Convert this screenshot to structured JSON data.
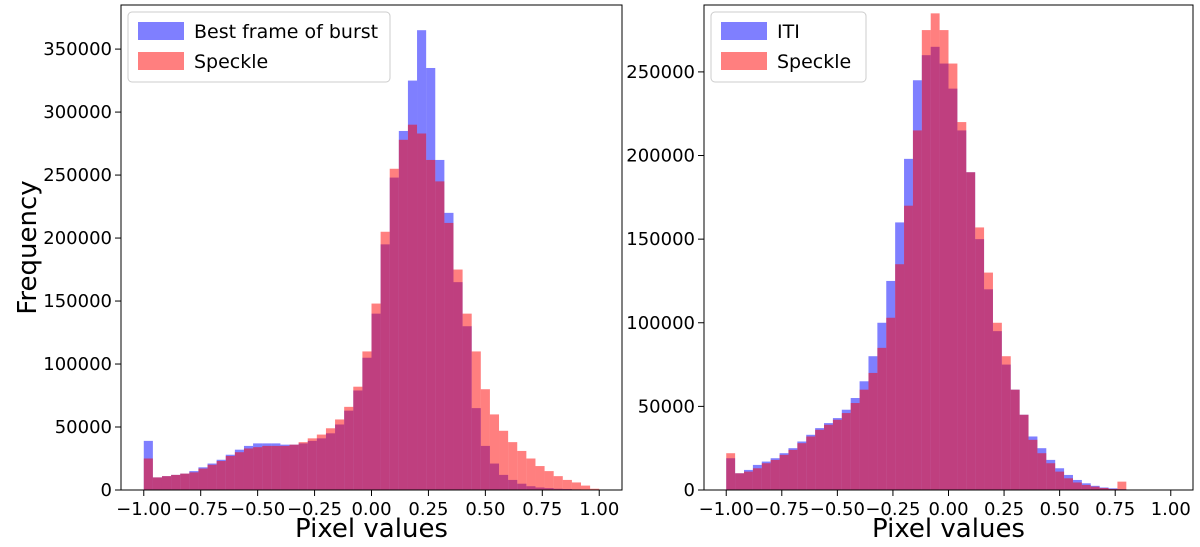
{
  "colors": {
    "blue": "#0000ff",
    "red": "#ff0000",
    "bar_alpha": 0.5
  },
  "chart_data": [
    {
      "type": "bar",
      "subtype": "overlaid-histogram",
      "xlabel": "Pixel values",
      "ylabel": "Frequency",
      "xlim": [
        -1.1,
        1.1
      ],
      "ylim": [
        0,
        385000
      ],
      "xticks": [
        -1.0,
        -0.75,
        -0.5,
        -0.25,
        0.0,
        0.25,
        0.5,
        0.75,
        1.0
      ],
      "xtick_labels": [
        "−1.00",
        "−0.75",
        "−0.50",
        "−0.25",
        "0.00",
        "0.25",
        "0.50",
        "0.75",
        "1.00"
      ],
      "yticks": [
        0,
        50000,
        100000,
        150000,
        200000,
        250000,
        300000,
        350000
      ],
      "ytick_labels": [
        "0",
        "50000",
        "100000",
        "150000",
        "200000",
        "250000",
        "300000",
        "350000"
      ],
      "legend_position": "top-left",
      "bin_start": -1.0,
      "bin_width": 0.04,
      "series": [
        {
          "name": "Best frame of burst",
          "color": "blue",
          "values": [
            39000,
            10000,
            11000,
            12000,
            13000,
            15000,
            18000,
            21000,
            24000,
            28000,
            32000,
            35000,
            37000,
            37000,
            37000,
            36000,
            36000,
            37000,
            39000,
            41000,
            45000,
            52000,
            63000,
            79000,
            105000,
            140000,
            195000,
            248000,
            285000,
            325000,
            365000,
            335000,
            262000,
            220000,
            165000,
            130000,
            65000,
            35000,
            21000,
            12000,
            8000,
            5000,
            3000,
            2000,
            1500,
            1000,
            800,
            500,
            0,
            0
          ]
        },
        {
          "name": "Speckle",
          "color": "red",
          "values": [
            25000,
            10000,
            11000,
            12000,
            13000,
            14000,
            17000,
            20000,
            23000,
            27000,
            30000,
            33000,
            34000,
            35000,
            35000,
            35000,
            36000,
            38000,
            41000,
            44000,
            49000,
            56000,
            66000,
            82000,
            110000,
            148000,
            205000,
            255000,
            278000,
            290000,
            283000,
            262000,
            245000,
            212000,
            175000,
            140000,
            110000,
            80000,
            60000,
            47000,
            38000,
            31000,
            25000,
            19000,
            15000,
            11000,
            8000,
            6000,
            3500,
            1000
          ]
        }
      ]
    },
    {
      "type": "bar",
      "subtype": "overlaid-histogram",
      "xlabel": "Pixel values",
      "ylabel": "",
      "xlim": [
        -1.1,
        1.1
      ],
      "ylim": [
        0,
        290000
      ],
      "xticks": [
        -1.0,
        -0.75,
        -0.5,
        -0.25,
        0.0,
        0.25,
        0.5,
        0.75,
        1.0
      ],
      "xtick_labels": [
        "−1.00",
        "−0.75",
        "−0.50",
        "−0.25",
        "0.00",
        "0.25",
        "0.50",
        "0.75",
        "1.00"
      ],
      "yticks": [
        0,
        50000,
        100000,
        150000,
        200000,
        250000
      ],
      "ytick_labels": [
        "0",
        "50000",
        "100000",
        "150000",
        "200000",
        "250000"
      ],
      "legend_position": "top-left",
      "bin_start": -1.0,
      "bin_width": 0.04,
      "series": [
        {
          "name": "ITI",
          "color": "blue",
          "values": [
            19000,
            10000,
            12000,
            15000,
            17000,
            19000,
            22000,
            25000,
            29000,
            33000,
            37000,
            40000,
            43000,
            48000,
            55000,
            65000,
            80000,
            100000,
            125000,
            160000,
            198000,
            245000,
            260000,
            265000,
            255000,
            240000,
            215000,
            190000,
            150000,
            120000,
            95000,
            75000,
            60000,
            45000,
            32000,
            25000,
            18000,
            13000,
            9000,
            6000,
            4000,
            2500,
            1500,
            1000,
            500,
            0
          ]
        },
        {
          "name": "Speckle",
          "color": "red",
          "values": [
            22000,
            10000,
            11000,
            13000,
            16000,
            18000,
            21000,
            24000,
            28000,
            32000,
            36000,
            39000,
            42000,
            46000,
            52000,
            60000,
            70000,
            85000,
            103000,
            135000,
            170000,
            215000,
            275000,
            285000,
            275000,
            255000,
            220000,
            190000,
            157000,
            130000,
            100000,
            80000,
            60000,
            45000,
            30000,
            22000,
            16000,
            11000,
            7000,
            4500,
            3000,
            2000,
            1200,
            600,
            5000,
            0
          ]
        }
      ]
    }
  ]
}
